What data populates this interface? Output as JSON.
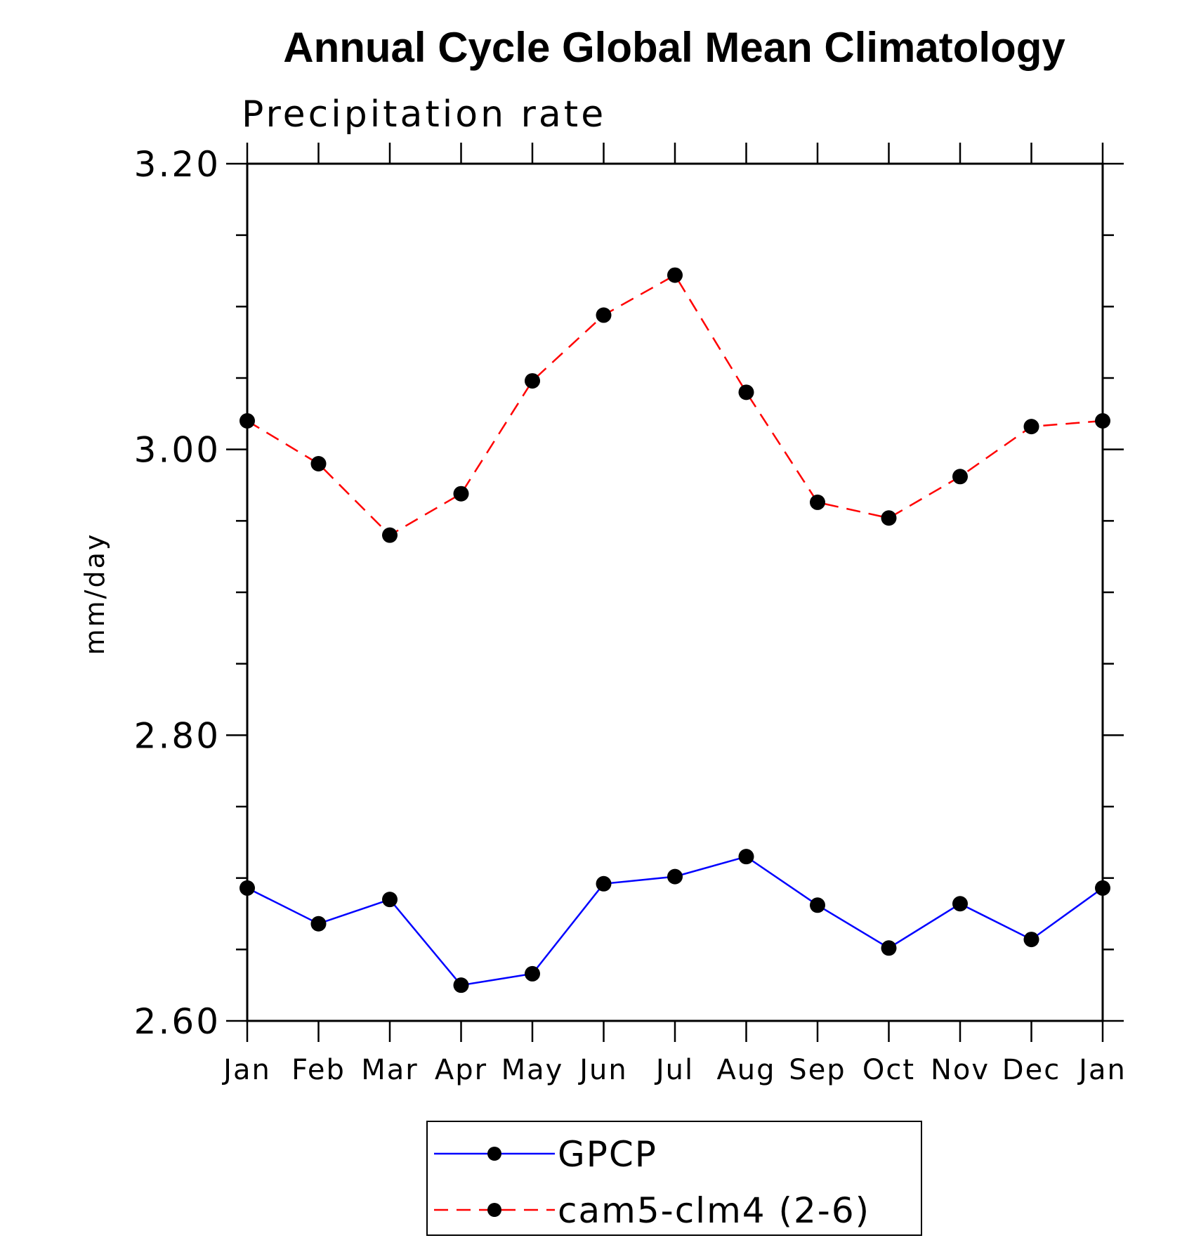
{
  "chart_data": {
    "type": "line",
    "title": "Annual Cycle Global Mean Climatology",
    "subtitle": "Precipitation rate",
    "ylabel": "mm/day",
    "xlabel": "",
    "categories": [
      "Jan",
      "Feb",
      "Mar",
      "Apr",
      "May",
      "Jun",
      "Jul",
      "Aug",
      "Sep",
      "Oct",
      "Nov",
      "Dec",
      "Jan"
    ],
    "ylim": [
      2.6,
      3.2
    ],
    "yticks_major": [
      "2.60",
      "2.80",
      "3.00",
      "3.20"
    ],
    "yticks_major_values": [
      2.6,
      2.8,
      3.0,
      3.2
    ],
    "yticks_minor_step": 0.05,
    "grid": false,
    "legend_position": "bottom-center",
    "series": [
      {
        "name": "GPCP",
        "color": "#0000ff",
        "dash": "solid",
        "marker_color": "#000000",
        "values": [
          2.693,
          2.668,
          2.685,
          2.625,
          2.633,
          2.696,
          2.701,
          2.715,
          2.681,
          2.651,
          2.682,
          2.657,
          2.693
        ]
      },
      {
        "name": "cam5-clm4 (2-6)",
        "color": "#ff0000",
        "dash": "dashed",
        "marker_color": "#000000",
        "values": [
          3.02,
          2.99,
          2.94,
          2.969,
          3.048,
          3.094,
          3.122,
          3.04,
          2.963,
          2.952,
          2.981,
          3.016,
          3.02
        ]
      }
    ]
  }
}
